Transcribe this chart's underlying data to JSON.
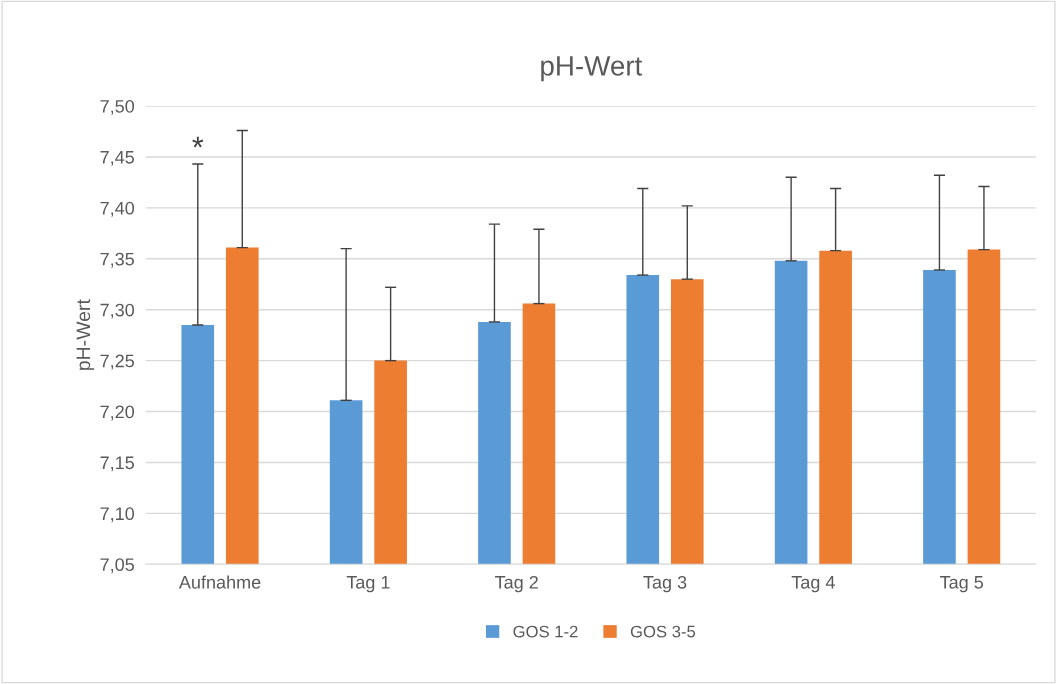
{
  "chart_data": {
    "type": "bar",
    "title": "pH-Wert",
    "ylabel": "pH-Wert",
    "categories": [
      "Aufnahme",
      "Tag 1",
      "Tag 2",
      "Tag 3",
      "Tag 4",
      "Tag 5"
    ],
    "series": [
      {
        "name": "GOS 1-2",
        "color": "#5b9bd5",
        "values": [
          7.285,
          7.211,
          7.288,
          7.334,
          7.348,
          7.339
        ],
        "errors": [
          [
            7.285,
            7.443
          ],
          [
            7.211,
            7.36
          ],
          [
            7.288,
            7.384
          ],
          [
            7.334,
            7.419
          ],
          [
            7.348,
            7.43
          ],
          [
            7.339,
            7.432
          ]
        ]
      },
      {
        "name": "GOS 3-5",
        "color": "#ed7d31",
        "values": [
          7.361,
          7.25,
          7.306,
          7.33,
          7.358,
          7.359
        ],
        "errors": [
          [
            7.361,
            7.476
          ],
          [
            7.25,
            7.322
          ],
          [
            7.306,
            7.379
          ],
          [
            7.33,
            7.402
          ],
          [
            7.358,
            7.419
          ],
          [
            7.359,
            7.421
          ]
        ]
      }
    ],
    "ylim": [
      7.05,
      7.5
    ],
    "yticks": [
      {
        "value": 7.05,
        "label": "7,05"
      },
      {
        "value": 7.1,
        "label": "7,10"
      },
      {
        "value": 7.15,
        "label": "7,15"
      },
      {
        "value": 7.2,
        "label": "7,20"
      },
      {
        "value": 7.25,
        "label": "7,25"
      },
      {
        "value": 7.3,
        "label": "7,30"
      },
      {
        "value": 7.35,
        "label": "7,35"
      },
      {
        "value": 7.4,
        "label": "7,40"
      },
      {
        "value": 7.45,
        "label": "7,45"
      },
      {
        "value": 7.5,
        "label": "7,50"
      }
    ],
    "grid": "y",
    "legend": "bottom",
    "annotations": [
      "*"
    ]
  }
}
